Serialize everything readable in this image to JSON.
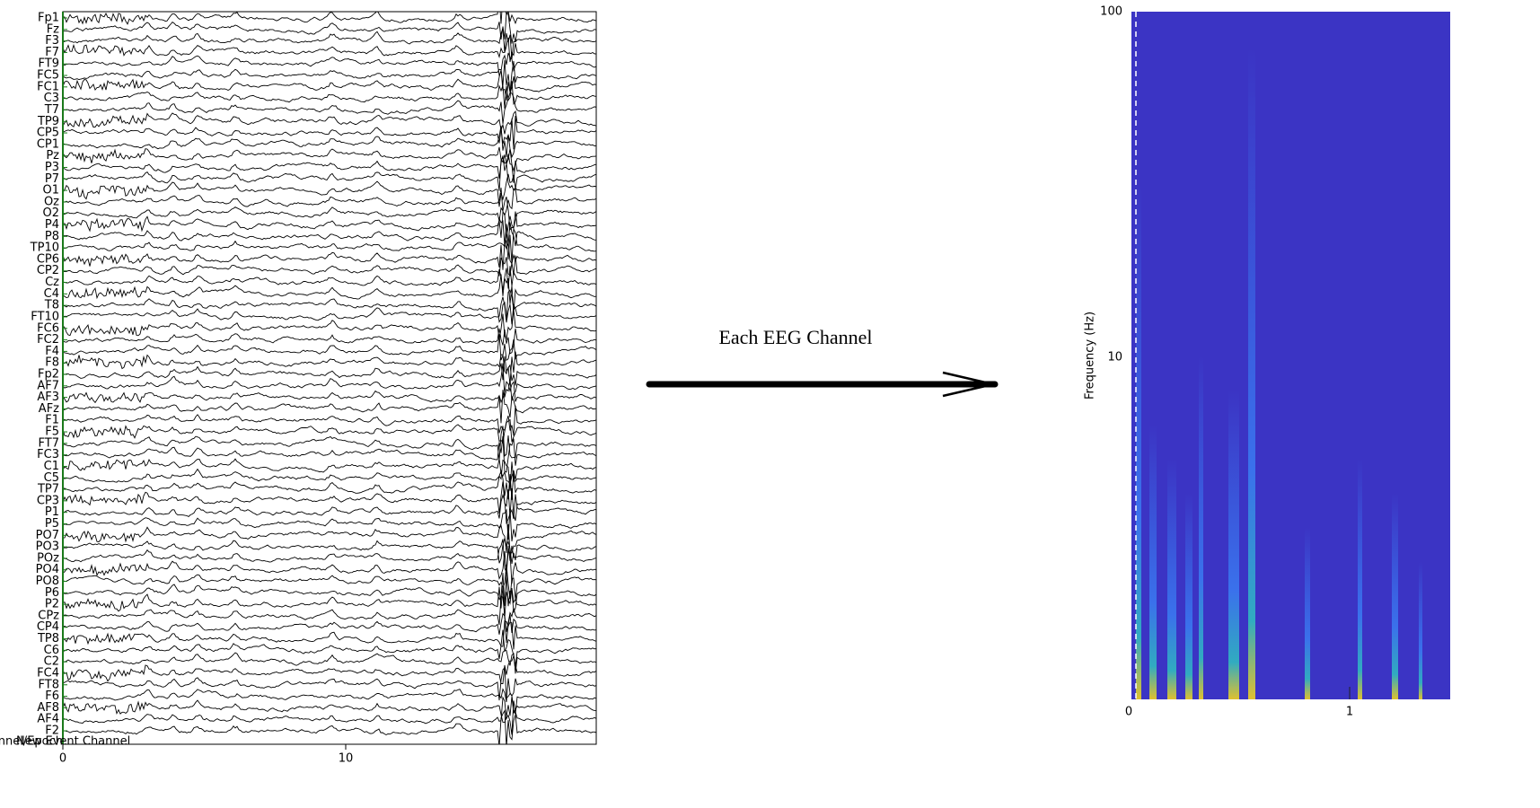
{
  "eeg_panel": {
    "channels": [
      "Fp1",
      "Fz",
      "F3",
      "F7",
      "FT9",
      "FC5",
      "FC1",
      "C3",
      "T7",
      "TP9",
      "CP5",
      "CP1",
      "Pz",
      "P3",
      "P7",
      "O1",
      "Oz",
      "O2",
      "P4",
      "P8",
      "TP10",
      "CP6",
      "CP2",
      "Cz",
      "C4",
      "T8",
      "FT10",
      "FC6",
      "FC2",
      "F4",
      "F8",
      "Fp2",
      "AF7",
      "AF3",
      "AFz",
      "F1",
      "F5",
      "FT7",
      "FC3",
      "C1",
      "C5",
      "TP7",
      "CP3",
      "P1",
      "P5",
      "PO7",
      "PO3",
      "POz",
      "PO4",
      "PO8",
      "P6",
      "P2",
      "CPz",
      "CP4",
      "TP8",
      "C6",
      "C2",
      "FC4",
      "FT8",
      "F6",
      "AF8",
      "AF4",
      "F2"
    ],
    "corner_labels": [
      "Channel/Epoch",
      "New Event Channel"
    ],
    "x_tick_labels": [
      "0",
      "10"
    ]
  },
  "arrow": {
    "label": "Each  EEG  Channel"
  },
  "spectrogram": {
    "y_label": "Frequency (Hz)",
    "y_tick_labels": [
      "100",
      "10"
    ],
    "x_tick_labels": [
      "0",
      "1"
    ]
  }
}
